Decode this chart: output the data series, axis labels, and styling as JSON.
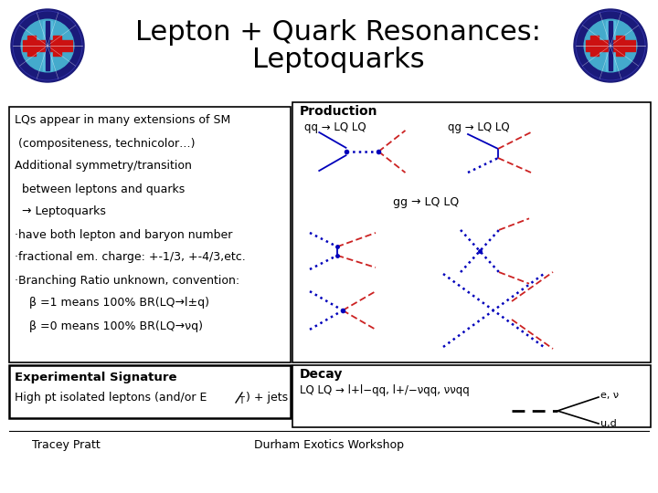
{
  "title_line1": "Lepton + Quark Resonances:",
  "title_line2": "Leptoquarks",
  "title_fontsize": 24,
  "bg_color": "#ffffff",
  "left_box_text": [
    "LQs appear in many extensions of SM",
    " (compositeness, technicolor…)",
    "Additional symmetry/transition",
    "  between leptons and quarks",
    "  → Leptoquarks",
    "·have both lepton and baryon number",
    "·fractional em. charge: +-1/3, +-4/3,etc.",
    "·Branching Ratio unknown, convention:",
    "    β =1 means 100% BR(LQ→l±q)",
    "    β =0 means 100% BR(LQ→νq)"
  ],
  "production_title": "Production",
  "production_qq": "qq → LQ LQ",
  "production_qg": "qg → LQ LQ",
  "production_gg": "gg → LQ LQ",
  "exp_sig_title": "Experimental Signature",
  "exp_sig_body": "High pt isolated leptons (and/or E",
  "exp_sig_T": "T",
  "exp_sig_end": ") + jets",
  "decay_title": "Decay",
  "decay_body": "LQ LQ → l+l−qq, l+/−νqq, ννqq",
  "decay_e_nu": "e, ν",
  "decay_ud": "u,d",
  "footer_left": "Tracey Pratt",
  "footer_center": "Durham Exotics Workshop",
  "blue": "#0000bb",
  "red": "#cc2222"
}
